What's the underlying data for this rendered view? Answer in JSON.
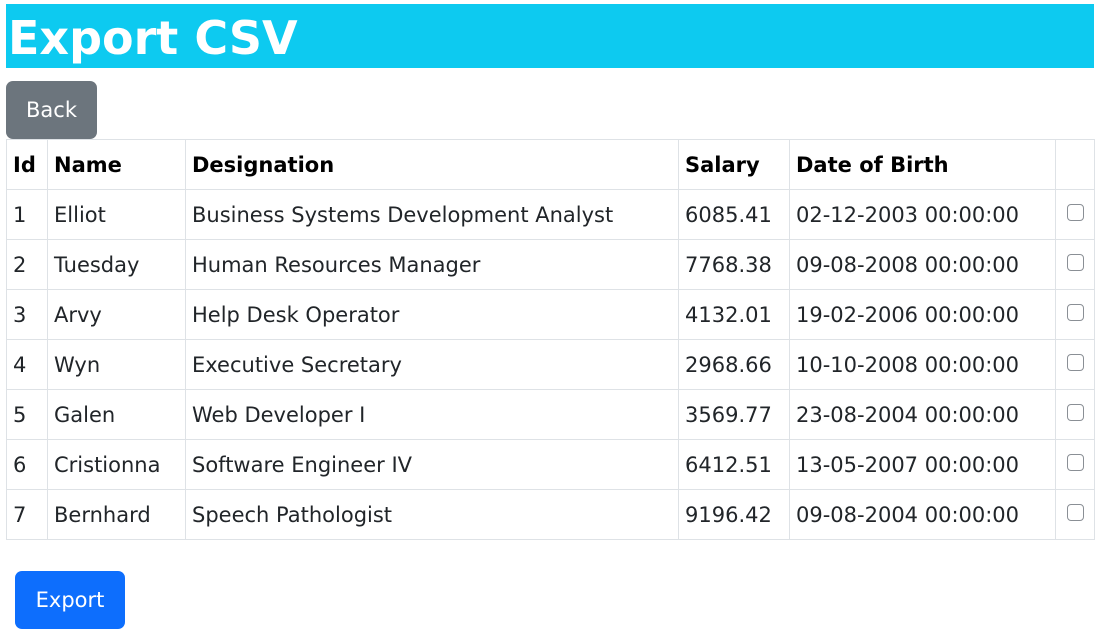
{
  "header": {
    "title": "Export CSV"
  },
  "actions": {
    "back_label": "Back",
    "export_label": "Export"
  },
  "table": {
    "columns": [
      "Id",
      "Name",
      "Designation",
      "Salary",
      "Date of Birth",
      ""
    ],
    "rows": [
      {
        "id": "1",
        "name": "Elliot",
        "designation": "Business Systems Development Analyst",
        "salary": "6085.41",
        "dob": "02-12-2003 00:00:00",
        "checked": false
      },
      {
        "id": "2",
        "name": "Tuesday",
        "designation": "Human Resources Manager",
        "salary": "7768.38",
        "dob": "09-08-2008 00:00:00",
        "checked": false
      },
      {
        "id": "3",
        "name": "Arvy",
        "designation": "Help Desk Operator",
        "salary": "4132.01",
        "dob": "19-02-2006 00:00:00",
        "checked": false
      },
      {
        "id": "4",
        "name": "Wyn",
        "designation": "Executive Secretary",
        "salary": "2968.66",
        "dob": "10-10-2008 00:00:00",
        "checked": false
      },
      {
        "id": "5",
        "name": "Galen",
        "designation": "Web Developer I",
        "salary": "3569.77",
        "dob": "23-08-2004 00:00:00",
        "checked": false
      },
      {
        "id": "6",
        "name": "Cristionna",
        "designation": "Software Engineer IV",
        "salary": "6412.51",
        "dob": "13-05-2007 00:00:00",
        "checked": false
      },
      {
        "id": "7",
        "name": "Bernhard",
        "designation": "Speech Pathologist",
        "salary": "9196.42",
        "dob": "09-08-2004 00:00:00",
        "checked": false
      }
    ]
  },
  "colors": {
    "header_bg": "#0dcaf0",
    "back_button_bg": "#6c757d",
    "export_button_bg": "#0d6efd"
  }
}
